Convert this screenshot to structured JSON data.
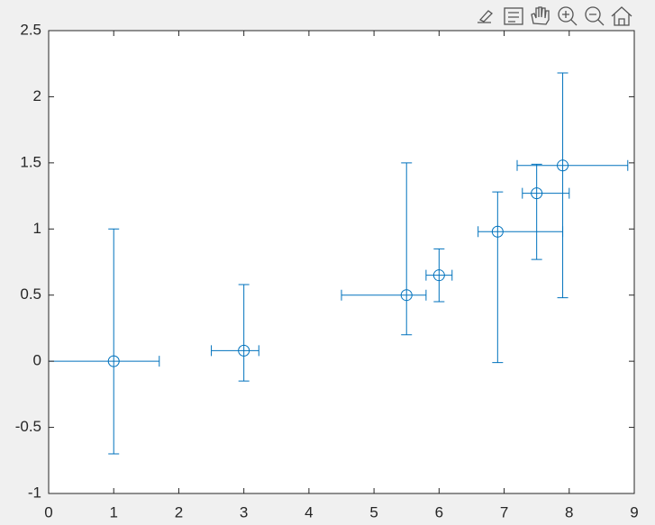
{
  "chart_data": {
    "type": "errorbar",
    "xlim": [
      0,
      9
    ],
    "xticks": [
      0,
      1,
      2,
      3,
      4,
      5,
      6,
      7,
      8,
      9
    ],
    "ylim": [
      -1,
      2.5
    ],
    "yticks": [
      -1,
      -0.5,
      0,
      0.5,
      1,
      1.5,
      2,
      2.5
    ],
    "grid": false,
    "series": [
      {
        "color": "#0072bd",
        "x": [
          1,
          3,
          5.5,
          6,
          6.9,
          7.5,
          7.9
        ],
        "values": [
          0,
          0.08,
          0.5,
          0.65,
          0.98,
          1.27,
          1.48
        ],
        "yneg": [
          0.7,
          0.23,
          0.3,
          0.2,
          0.99,
          0.5,
          1.0
        ],
        "ypos": [
          1.0,
          0.5,
          1.0,
          0.2,
          0.3,
          0.22,
          0.7
        ],
        "xneg": [
          1.0,
          0.5,
          1.0,
          0.2,
          0.3,
          0.22,
          0.7
        ],
        "xpos": [
          0.7,
          0.23,
          0.3,
          0.2,
          1.0,
          0.5,
          1.0
        ]
      }
    ]
  }
}
